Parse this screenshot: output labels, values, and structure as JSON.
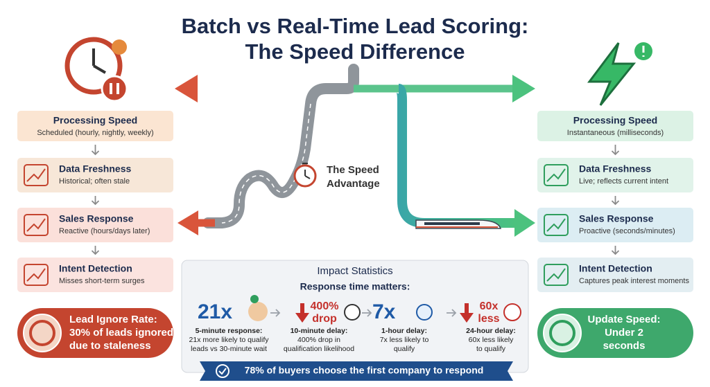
{
  "title": {
    "lines": [
      "Batch vs Real-Time Lead Scoring:",
      "The Speed Difference"
    ]
  },
  "center_label": {
    "lines": [
      "The Speed",
      "Advantage"
    ]
  },
  "batch": {
    "items": [
      {
        "title": "Processing Speed",
        "text": "Scheduled (hourly, nightly, weekly)"
      },
      {
        "title": "Data Freshness",
        "text": "Historical; often stale"
      },
      {
        "title": "Sales Response",
        "text": "Reactive (hours/days later)"
      },
      {
        "title": "Intent Detection",
        "text": "Misses short-term surges"
      }
    ],
    "callout": {
      "lines": [
        "Lead Ignore Rate:",
        "30% of leads ignored",
        "due to staleness"
      ]
    }
  },
  "realtime": {
    "items": [
      {
        "title": "Processing Speed",
        "text": "Instantaneous (milliseconds)"
      },
      {
        "title": "Data Freshness",
        "text": "Live; reflects current intent"
      },
      {
        "title": "Sales Response",
        "text": "Proactive (seconds/minutes)"
      },
      {
        "title": "Intent Detection",
        "text": "Captures peak interest moments"
      }
    ],
    "callout": {
      "lines": [
        "Update Speed:",
        "Under 2",
        "seconds"
      ]
    }
  },
  "impact": {
    "title": "Impact Statistics",
    "subtitle": "Response time matters:",
    "stats": [
      {
        "figure": [
          "21x"
        ],
        "caption": [
          "5-minute response:",
          "21x more likely to qualify",
          "leads vs 30-minute wait"
        ]
      },
      {
        "figure": [
          "400%",
          "drop"
        ],
        "caption": [
          "10-minute delay:",
          "400% drop in",
          "qualification likelihood"
        ]
      },
      {
        "figure": [
          "7x"
        ],
        "caption": [
          "1-hour delay:",
          "7x less likely to",
          "qualify"
        ]
      },
      {
        "figure": [
          "60x",
          "less"
        ],
        "caption": [
          "24-hour delay:",
          "60x less likely",
          "to qualify"
        ]
      }
    ],
    "banner": "78% of buyers choose the first company to respond"
  }
}
